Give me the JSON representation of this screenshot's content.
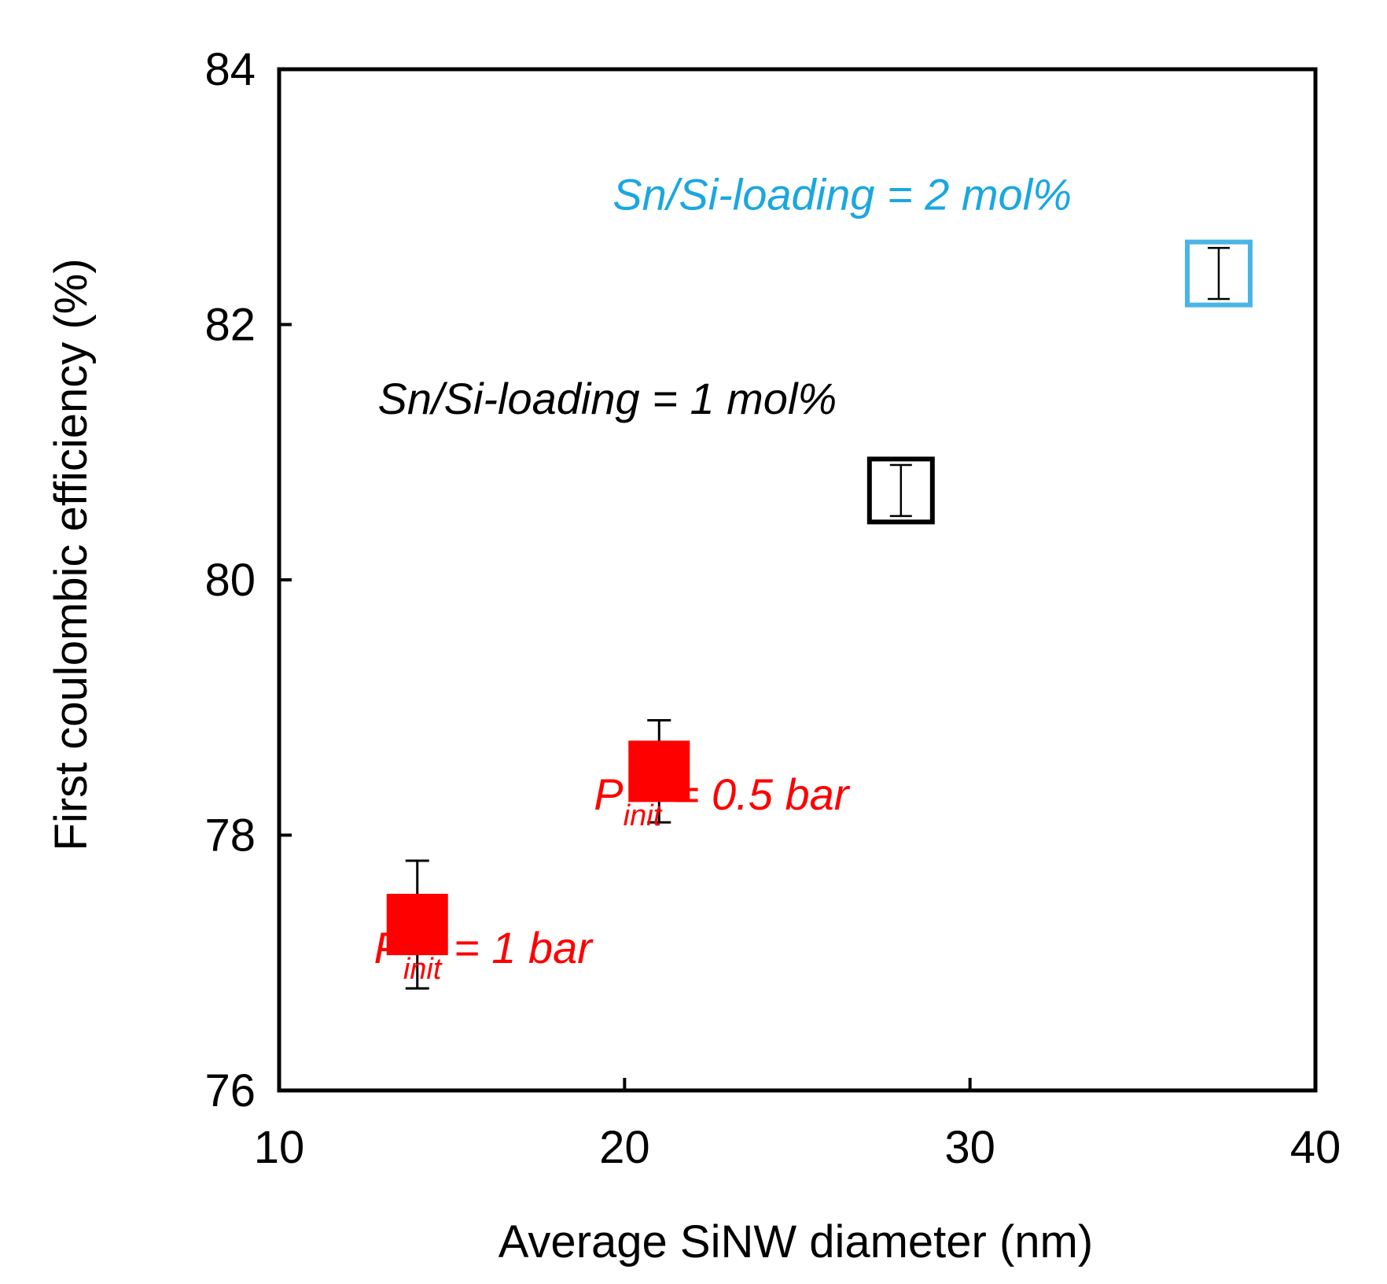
{
  "chart_data": {
    "type": "scatter",
    "title": "",
    "xlabel": "Average SiNW diameter (nm)",
    "ylabel": "First coulombic efficiency (%)",
    "xlim": [
      10,
      40
    ],
    "ylim": [
      76,
      84
    ],
    "xticks": [
      10,
      20,
      30,
      40
    ],
    "yticks": [
      76,
      78,
      80,
      82,
      84
    ],
    "grid": false,
    "series": [
      {
        "name": "P_init = 1 bar",
        "color": "#ff0000",
        "marker": "filled-square",
        "points": [
          {
            "x": 14,
            "y": 77.3,
            "err_low": 76.8,
            "err_high": 77.8
          }
        ]
      },
      {
        "name": "P_init = 0.5 bar",
        "color": "#ff0000",
        "marker": "filled-square",
        "points": [
          {
            "x": 21,
            "y": 78.5,
            "err_low": 78.1,
            "err_high": 78.9
          }
        ]
      },
      {
        "name": "Sn/Si-loading = 1 mol%",
        "color": "#000000",
        "marker": "open-square",
        "points": [
          {
            "x": 28,
            "y": 80.7,
            "err_low": 80.5,
            "err_high": 80.9
          }
        ]
      },
      {
        "name": "Sn/Si-loading = 2 mol%",
        "color": "#4ab4e6",
        "marker": "open-square",
        "points": [
          {
            "x": 37.2,
            "y": 82.4,
            "err_low": 82.2,
            "err_high": 82.6
          }
        ]
      }
    ],
    "annotations": [
      {
        "id": "sn2",
        "color": "#1aa7e0",
        "x": 26.3,
        "y": 82.9,
        "text": "Sn/Si-loading = 2 mol%"
      },
      {
        "id": "sn1",
        "color": "#000000",
        "x": 19.5,
        "y": 81.3,
        "text": "Sn/Si-loading = 1 mol%"
      },
      {
        "id": "p05",
        "color": "#ff0000",
        "x": 22.8,
        "y": 78.2,
        "main": "P",
        "sub": "init",
        "rest": " = 0.5 bar"
      },
      {
        "id": "p1",
        "color": "#ff0000",
        "x": 15.9,
        "y": 77.0,
        "main": "P",
        "sub": "init",
        "rest": " = 1 bar"
      }
    ]
  }
}
